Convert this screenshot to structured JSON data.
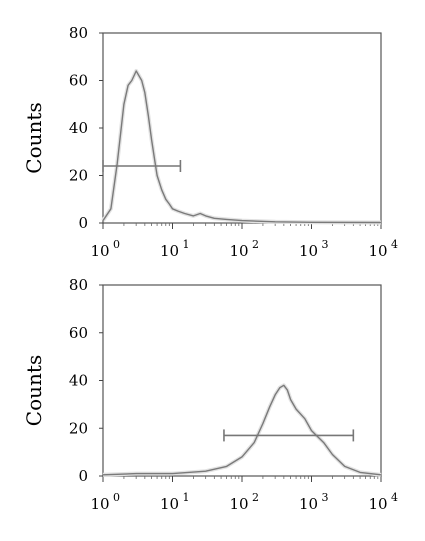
{
  "chart_data": [
    {
      "type": "histogram",
      "xlabel": "",
      "ylabel": "Counts",
      "xscale": "log",
      "xlim": [
        1,
        10000
      ],
      "ylim": [
        0,
        80
      ],
      "yticks": [
        0,
        20,
        40,
        60,
        80
      ],
      "xticks": [
        {
          "base": "10",
          "exp": "0"
        },
        {
          "base": "10",
          "exp": "1"
        },
        {
          "base": "10",
          "exp": "2"
        },
        {
          "base": "10",
          "exp": "3"
        },
        {
          "base": "10",
          "exp": "4"
        }
      ],
      "grid": false,
      "series": [
        {
          "x": [
            1,
            1.3,
            1.6,
            2,
            2.3,
            2.6,
            3,
            3.3,
            3.6,
            4,
            4.5,
            5,
            5.5,
            6,
            7,
            8,
            9,
            10,
            12,
            15,
            20,
            25,
            30,
            40,
            60,
            100,
            300,
            1000,
            10000
          ],
          "y": [
            1,
            6,
            25,
            50,
            58,
            60,
            64,
            62,
            60,
            55,
            45,
            35,
            27,
            20,
            14,
            10,
            8,
            6,
            5,
            4,
            3,
            4,
            3,
            2,
            1.5,
            1,
            0.5,
            0.3,
            0.2
          ]
        }
      ],
      "gate": {
        "x_start": 1,
        "x_end": 13,
        "y": 24
      }
    },
    {
      "type": "histogram",
      "xlabel": "",
      "ylabel": "Counts",
      "xscale": "log",
      "xlim": [
        1,
        10000
      ],
      "ylim": [
        0,
        80
      ],
      "yticks": [
        0,
        20,
        40,
        60,
        80
      ],
      "xticks": [
        {
          "base": "10",
          "exp": "0"
        },
        {
          "base": "10",
          "exp": "1"
        },
        {
          "base": "10",
          "exp": "2"
        },
        {
          "base": "10",
          "exp": "3"
        },
        {
          "base": "10",
          "exp": "4"
        }
      ],
      "grid": false,
      "series": [
        {
          "x": [
            1,
            3,
            10,
            30,
            60,
            100,
            150,
            200,
            250,
            300,
            350,
            400,
            450,
            500,
            600,
            800,
            1000,
            1500,
            2000,
            3000,
            5000,
            10000
          ],
          "y": [
            0.5,
            1,
            1,
            2,
            4,
            8,
            14,
            22,
            29,
            34,
            37,
            38,
            36,
            32,
            28,
            24,
            19,
            14,
            9,
            4,
            1.5,
            0.5
          ]
        }
      ],
      "gate": {
        "x_start": 55,
        "x_end": 4000,
        "y": 17
      }
    }
  ]
}
